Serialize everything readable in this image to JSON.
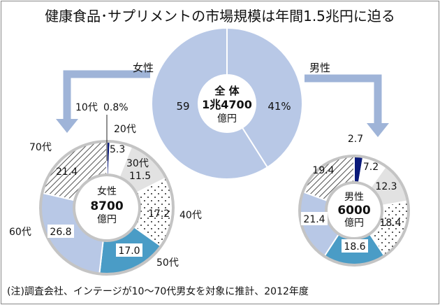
{
  "chart_data": [
    {
      "type": "pie",
      "title": "健康食品･サプリメントの市場規模は年間1.5兆円に迫る",
      "center_label": [
        "全 体",
        "1兆4700",
        "億円"
      ],
      "categories": [
        "男性",
        "女性"
      ],
      "values": [
        41,
        59
      ],
      "value_labels": [
        "41%",
        "59"
      ],
      "colors": [
        "#b8c8e6",
        "#b8c8e6"
      ]
    },
    {
      "type": "pie",
      "group": "女性",
      "center_label": [
        "女性",
        "8700",
        "億円"
      ],
      "categories": [
        "10代",
        "20代",
        "30代",
        "40代",
        "50代",
        "60代",
        "70代"
      ],
      "values": [
        0.8,
        5.3,
        11.5,
        17.2,
        17.0,
        26.8,
        21.4
      ],
      "value_labels": [
        "0.8%",
        "5.3",
        "11.5",
        "17.2",
        "17.0",
        "26.8",
        "21.4"
      ],
      "fills": [
        "#0a1a7a",
        "#ffffff",
        "#e2e2e2",
        "dots",
        "#4a9cc6",
        "#b8c8e6",
        "hatch"
      ]
    },
    {
      "type": "pie",
      "group": "男性",
      "center_label": [
        "男性",
        "6000",
        "億円"
      ],
      "categories": [
        "10代",
        "20代",
        "30代",
        "40代",
        "50代",
        "60代",
        "70代"
      ],
      "values": [
        2.7,
        7.2,
        12.3,
        18.4,
        18.6,
        21.4,
        19.4
      ],
      "value_labels": [
        "2.7",
        "7.2",
        "12.3",
        "18.4",
        "18.6",
        "21.4",
        "19.4"
      ],
      "fills": [
        "#0a1a7a",
        "#ffffff",
        "#e2e2e2",
        "dots",
        "#4a9cc6",
        "#b8c8e6",
        "hatch"
      ]
    }
  ],
  "footnote": "(注)調査会社、インテージが10～70代男女を対象に推計、2012年度",
  "colors": {
    "arrow": "#9fb4d8",
    "ring": "#c4c4c4"
  }
}
